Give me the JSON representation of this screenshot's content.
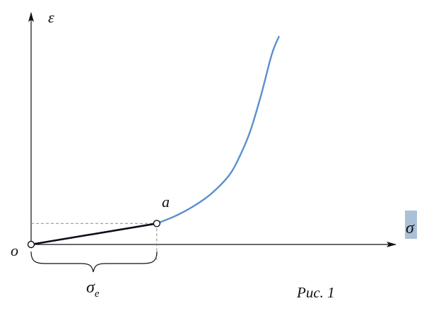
{
  "chart_data": {
    "type": "line",
    "xlabel": "σ",
    "ylabel": "ε",
    "origin_label": "o",
    "point_label": "a",
    "bracket_label_main": "σ",
    "bracket_label_sub": "e",
    "caption": "Рис. 1",
    "xlim": [
      0,
      1
    ],
    "ylim": [
      0,
      1
    ],
    "grid": false,
    "series": [
      {
        "points": [
          [
            0,
            0
          ],
          [
            0.35,
            0.099
          ]
        ],
        "color": "#0d0d1a"
      },
      {
        "points": [
          [
            0.35,
            0.099
          ],
          [
            0.4,
            0.133
          ],
          [
            0.45,
            0.178
          ],
          [
            0.5,
            0.237
          ],
          [
            0.55,
            0.323
          ],
          [
            0.58,
            0.412
          ],
          [
            0.61,
            0.533
          ],
          [
            0.64,
            0.701
          ],
          [
            0.67,
            0.895
          ],
          [
            0.69,
            0.98
          ]
        ],
        "color": "#5b8fd0"
      }
    ],
    "markers": [
      {
        "x": 0,
        "y": 0
      },
      {
        "x": 0.35,
        "y": 0.099
      }
    ],
    "elastic_limit": {
      "x": 0.35,
      "y": 0.099
    },
    "highlight_color": "#a9c0d8"
  }
}
